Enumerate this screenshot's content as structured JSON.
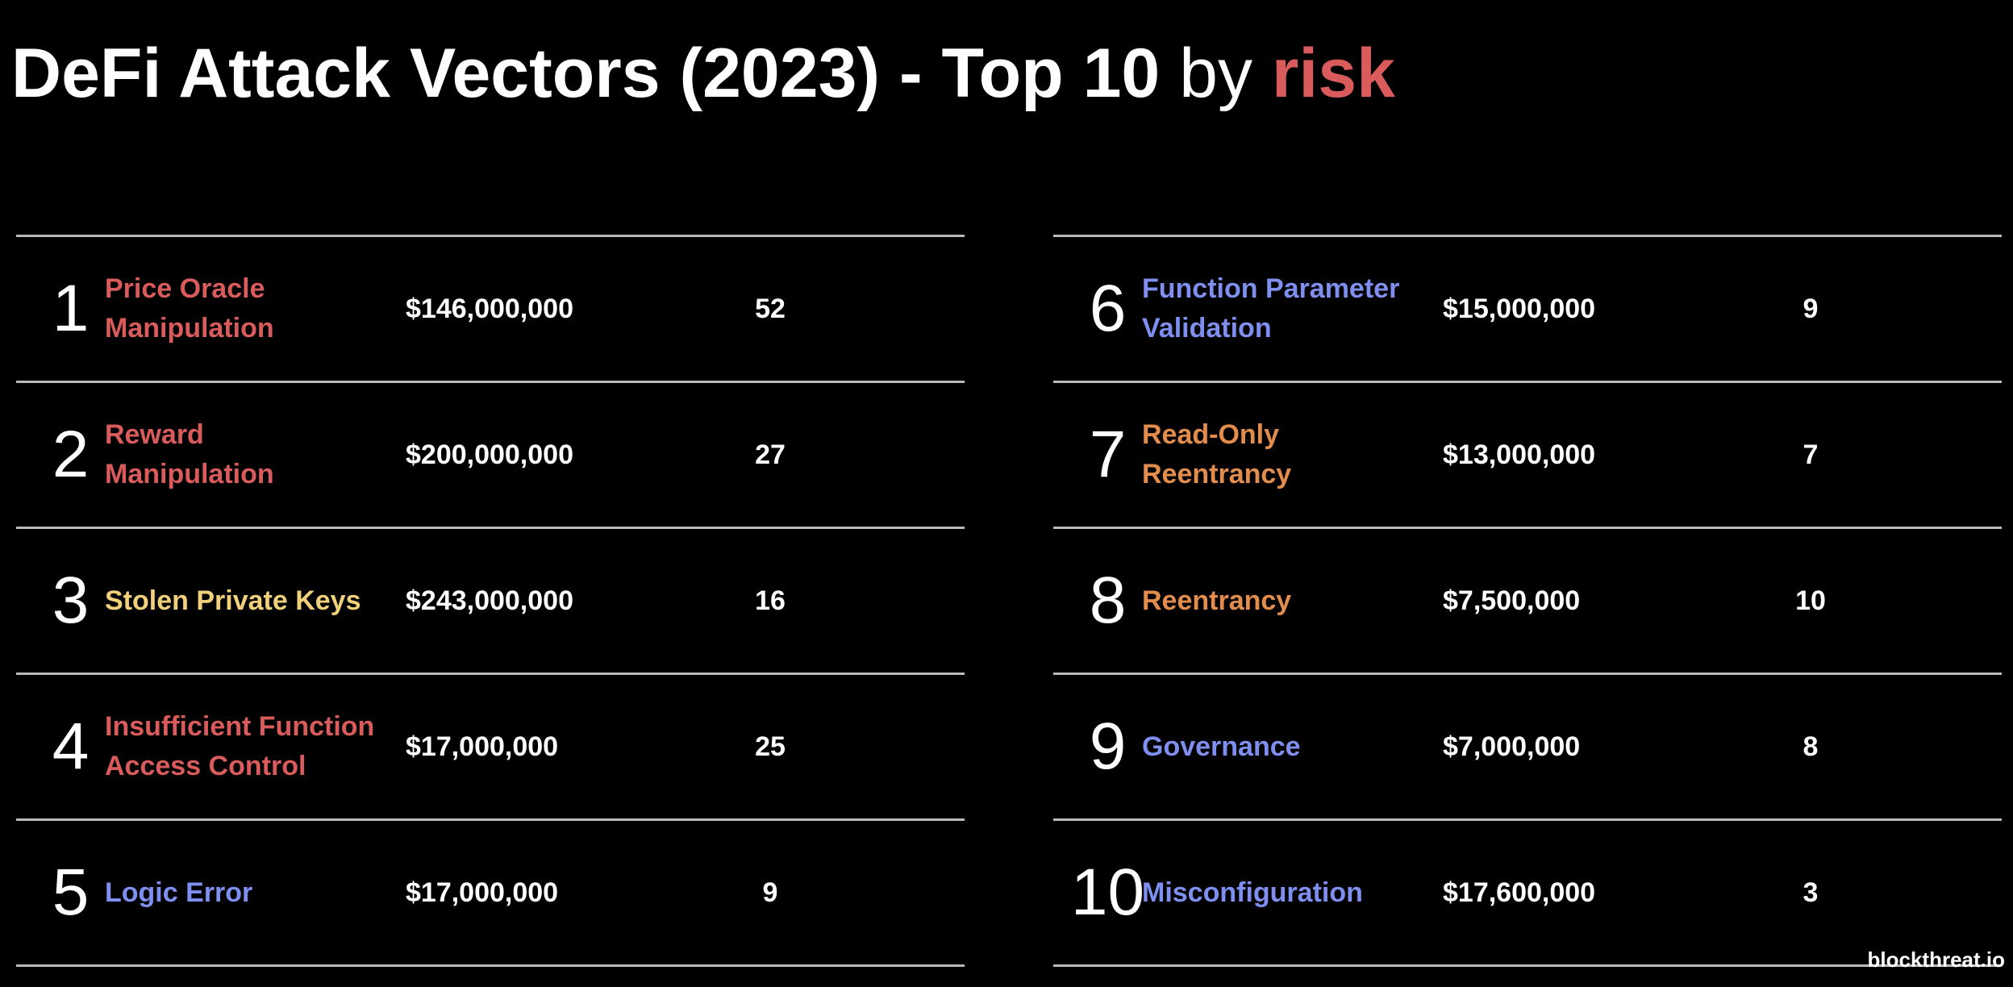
{
  "header": {
    "title_main": "DeFi Attack Vectors (2023) - Top 10",
    "title_by": "by",
    "title_risk": "risk"
  },
  "colors": {
    "background": "#000000",
    "text": "#ffffff",
    "risk_red": "#d95b5b",
    "risk_yellow": "#f0d07a",
    "risk_orange": "#e38d4d",
    "risk_blue": "#7f8ff0",
    "rule": "#b9b9b9"
  },
  "rows": [
    {
      "rank": "1",
      "name": "Price Oracle\nManipulation",
      "amount": "$146,000,000",
      "count": "52",
      "color": "#d95b5b"
    },
    {
      "rank": "2",
      "name": "Reward\nManipulation",
      "amount": "$200,000,000",
      "count": "27",
      "color": "#d95b5b"
    },
    {
      "rank": "3",
      "name": "Stolen Private Keys",
      "amount": "$243,000,000",
      "count": "16",
      "color": "#f0d07a"
    },
    {
      "rank": "4",
      "name": "Insufficient Function\nAccess Control",
      "amount": "$17,000,000",
      "count": "25",
      "color": "#d95b5b"
    },
    {
      "rank": "5",
      "name": "Logic Error",
      "amount": "$17,000,000",
      "count": "9",
      "color": "#7f8ff0"
    },
    {
      "rank": "6",
      "name": "Function Parameter\nValidation",
      "amount": "$15,000,000",
      "count": "9",
      "color": "#7f8ff0"
    },
    {
      "rank": "7",
      "name": "Read-Only\nReentrancy",
      "amount": "$13,000,000",
      "count": "7",
      "color": "#e38d4d"
    },
    {
      "rank": "8",
      "name": "Reentrancy",
      "amount": "$7,500,000",
      "count": "10",
      "color": "#e38d4d"
    },
    {
      "rank": "9",
      "name": "Governance",
      "amount": "$7,000,000",
      "count": "8",
      "color": "#7f8ff0"
    },
    {
      "rank": "10",
      "name": "Misconfiguration",
      "amount": "$17,600,000",
      "count": "3",
      "color": "#7f8ff0"
    }
  ],
  "footer": {
    "watermark": "blockthreat.io"
  }
}
